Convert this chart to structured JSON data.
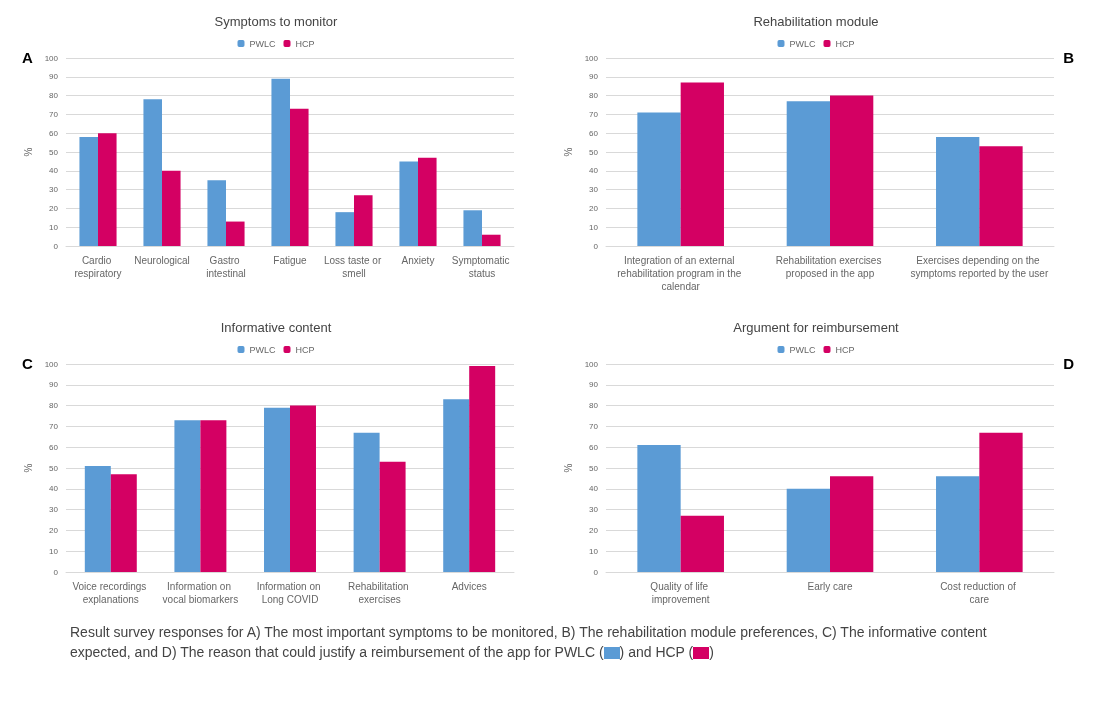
{
  "chart_data": [
    {
      "type": "bar",
      "title": "Symptoms to monitor",
      "ylabel": "%",
      "categories": [
        "Cardio respiratory",
        "Neurological",
        "Gastro intestinal",
        "Fatigue",
        "Loss taste or smell",
        "Anxiety",
        "Symptomatic status"
      ],
      "series": [
        {
          "name": "PWLC",
          "color": "#5b9bd5",
          "values": [
            58,
            78,
            35,
            89,
            18,
            45,
            19
          ]
        },
        {
          "name": "HCP",
          "color": "#d40063",
          "values": [
            60,
            40,
            13,
            73,
            27,
            47,
            6
          ]
        }
      ],
      "ylim": [
        0,
        100
      ],
      "yticks": [
        0,
        10,
        20,
        30,
        40,
        50,
        60,
        70,
        80,
        90,
        100
      ],
      "grid": "y",
      "legend": "top",
      "annotations": [
        "A"
      ]
    },
    {
      "type": "bar",
      "title": "Rehabilitation module",
      "ylabel": "%",
      "categories": [
        "Integration of an external rehabilitation program in the calendar",
        "Rehabilitation exercises proposed in the app",
        "Exercises depending on the symptoms reported by the user"
      ],
      "series": [
        {
          "name": "PWLC",
          "color": "#5b9bd5",
          "values": [
            71,
            77,
            58
          ]
        },
        {
          "name": "HCP",
          "color": "#d40063",
          "values": [
            87,
            80,
            53
          ]
        }
      ],
      "ylim": [
        0,
        100
      ],
      "yticks": [
        0,
        10,
        20,
        30,
        40,
        50,
        60,
        70,
        80,
        90,
        100
      ],
      "grid": "y",
      "legend": "top",
      "annotations": [
        "B"
      ]
    },
    {
      "type": "bar",
      "title": "Informative content",
      "ylabel": "%",
      "categories": [
        "Voice recordings explanations",
        "Information on vocal biomarkers",
        "Information on Long COVID",
        "Rehabilitation exercises",
        "Advices"
      ],
      "series": [
        {
          "name": "PWLC",
          "color": "#5b9bd5",
          "values": [
            51,
            73,
            79,
            67,
            83
          ]
        },
        {
          "name": "HCP",
          "color": "#d40063",
          "values": [
            47,
            73,
            80,
            53,
            99
          ]
        }
      ],
      "ylim": [
        0,
        100
      ],
      "yticks": [
        0,
        10,
        20,
        30,
        40,
        50,
        60,
        70,
        80,
        90,
        100
      ],
      "grid": "y",
      "legend": "top",
      "annotations": [
        "C"
      ]
    },
    {
      "type": "bar",
      "title": "Argument for reimbursement",
      "ylabel": "%",
      "categories": [
        "Quality of life improvement",
        "Early care",
        "Cost reduction of care"
      ],
      "series": [
        {
          "name": "PWLC",
          "color": "#5b9bd5",
          "values": [
            61,
            40,
            46
          ]
        },
        {
          "name": "HCP",
          "color": "#d40063",
          "values": [
            27,
            46,
            67
          ]
        }
      ],
      "ylim": [
        0,
        100
      ],
      "yticks": [
        0,
        10,
        20,
        30,
        40,
        50,
        60,
        70,
        80,
        90,
        100
      ],
      "grid": "y",
      "legend": "top",
      "annotations": [
        "D",
        "Result survey responses for A) The most important symptoms to be monitored, B) The rehabilitation module preferences, C) The informative content expected, and D) The reason that could justify a reimbursement of the app for PWLC (",
        ") and HCP (",
        ")"
      ]
    }
  ]
}
